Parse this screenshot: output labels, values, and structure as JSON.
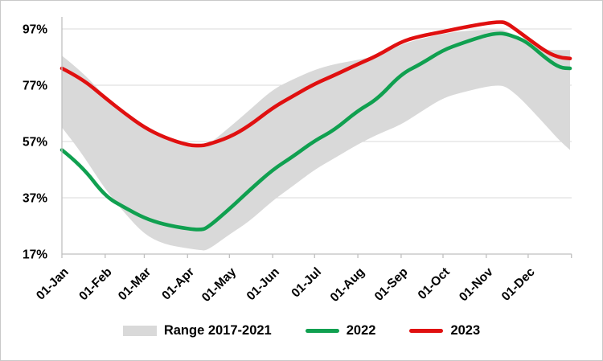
{
  "chart_data": {
    "type": "line",
    "title": "",
    "description": "Storage fill level in percent: grey band shows 2017-2021 range, green line 2022, red line 2023",
    "grid": true,
    "legend_position": "bottom",
    "x_axis": {
      "tick_labels": [
        "01-Jan",
        "01-Feb",
        "01-Mar",
        "01-Apr",
        "01-May",
        "01-Jun",
        "01-Jul",
        "01-Aug",
        "01-Sep",
        "01-Oct",
        "01-Nov",
        "01-Dec"
      ],
      "tick_days": [
        1,
        32,
        60,
        91,
        121,
        152,
        182,
        213,
        244,
        274,
        305,
        335
      ],
      "axis_end_day": 366,
      "range_days": [
        1,
        365
      ]
    },
    "y_axis": {
      "tick_labels": [
        "17%",
        "37%",
        "57%",
        "77%",
        "97%"
      ],
      "tick_values": [
        17,
        37,
        57,
        77,
        97
      ],
      "unit": "%",
      "range": [
        17,
        102
      ]
    },
    "days": [
      1,
      15,
      32,
      46,
      60,
      74,
      91,
      100,
      105,
      121,
      135,
      152,
      166,
      182,
      196,
      213,
      227,
      244,
      258,
      274,
      288,
      305,
      314,
      319,
      327,
      335,
      349,
      358,
      365
    ],
    "series": [
      {
        "name": "Range 2017-2021",
        "type": "band",
        "color": "#d9d9d9",
        "lower": [
          62,
          53,
          40,
          31.5,
          24,
          20.5,
          19,
          18.4,
          18.2,
          24,
          28.5,
          36,
          41,
          47,
          51,
          56,
          59.5,
          63,
          67.5,
          72.5,
          74.5,
          76.5,
          77,
          76.5,
          73.5,
          69.5,
          62,
          57,
          54
        ],
        "upper": [
          87.5,
          82,
          73,
          67.5,
          62.5,
          58,
          54.8,
          55,
          55.5,
          62,
          68,
          75.5,
          79,
          82.5,
          84.5,
          86,
          87.5,
          91.5,
          93.5,
          95.3,
          96.3,
          96.8,
          96.8,
          96.5,
          94,
          91,
          89.5,
          89.5,
          89.5
        ]
      },
      {
        "name": "2022",
        "type": "line",
        "color": "#10a050",
        "values": [
          54,
          48.5,
          37.5,
          33.5,
          29.8,
          27.5,
          26,
          25.6,
          26.2,
          33,
          39.5,
          47,
          51.5,
          57.3,
          61,
          68,
          72,
          81,
          84.5,
          89.5,
          92,
          94.8,
          95.5,
          95.2,
          94,
          92,
          86,
          83.2,
          83
        ]
      },
      {
        "name": "2023",
        "type": "line",
        "color": "#e01010",
        "values": [
          83,
          79.5,
          72.5,
          67,
          62,
          58.5,
          55.7,
          55.5,
          55.8,
          58.5,
          62.5,
          69,
          73,
          77.5,
          80.5,
          84.5,
          87.5,
          92.5,
          94.5,
          96,
          97.5,
          99,
          99.5,
          99.3,
          96.5,
          93.5,
          88.5,
          86.8,
          86.5
        ]
      }
    ],
    "style": {
      "grid_color": "#d9d9d9",
      "axis_color": "#bfbfbf",
      "text_color": "#000000",
      "line_width": 4.6
    }
  }
}
